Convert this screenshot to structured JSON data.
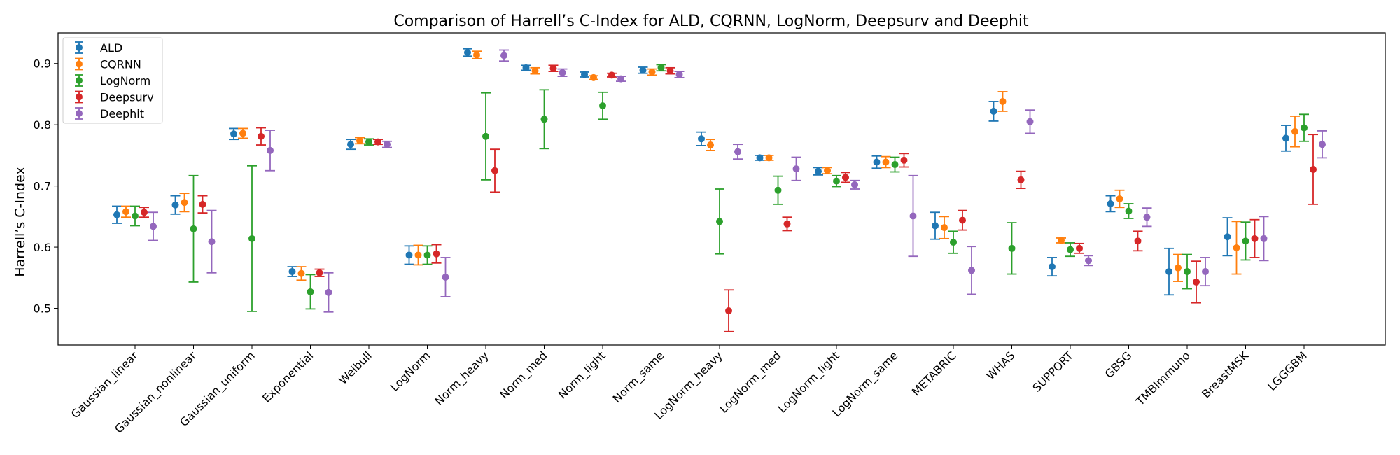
{
  "chart_data": {
    "type": "errorbar",
    "title": "Comparison of Harrell’s C-Index for ALD, CQRNN, LogNorm, Deepsurv and Deephit",
    "xlabel": "",
    "ylabel": "Harrell’s C-Index",
    "ylim": [
      0.44,
      0.95
    ],
    "yticks": [
      "0.5",
      "0.6",
      "0.7",
      "0.8",
      "0.9"
    ],
    "grid": false,
    "legend_position": "upper-left",
    "categories": [
      "Gaussian_linear",
      "Gaussian_nonlinear",
      "Gaussian_uniform",
      "Exponential",
      "Weibull",
      "LogNorm",
      "Norm_heavy",
      "Norm_med",
      "Norm_light",
      "Norm_same",
      "LogNorm_heavy",
      "LogNorm_med",
      "LogNorm_light",
      "LogNorm_same",
      "METABRIC",
      "WHAS",
      "SUPPORT",
      "GBSG",
      "TMBImmuno",
      "BreastMSK",
      "LGGGBM"
    ],
    "series": [
      {
        "name": "ALD",
        "color": "#1f77b4",
        "values": [
          0.653,
          0.669,
          0.785,
          0.56,
          0.768,
          0.587,
          0.918,
          0.893,
          0.882,
          0.889,
          0.777,
          0.746,
          0.724,
          0.739,
          0.635,
          0.822,
          0.568,
          0.671,
          0.56,
          0.617,
          0.778
        ],
        "errors": [
          0.014,
          0.015,
          0.009,
          0.008,
          0.008,
          0.015,
          0.006,
          0.004,
          0.004,
          0.005,
          0.011,
          0.004,
          0.006,
          0.01,
          0.022,
          0.016,
          0.015,
          0.013,
          0.038,
          0.031,
          0.021
        ]
      },
      {
        "name": "CQRNN",
        "color": "#ff7f0e",
        "values": [
          0.658,
          0.673,
          0.786,
          0.557,
          0.774,
          0.587,
          0.914,
          0.888,
          0.877,
          0.886,
          0.767,
          0.746,
          0.725,
          0.739,
          0.632,
          0.838,
          0.611,
          0.679,
          0.566,
          0.599,
          0.789
        ],
        "errors": [
          0.009,
          0.015,
          0.008,
          0.011,
          0.005,
          0.016,
          0.006,
          0.005,
          0.003,
          0.005,
          0.009,
          0.004,
          0.005,
          0.009,
          0.018,
          0.016,
          0.004,
          0.014,
          0.022,
          0.043,
          0.025
        ]
      },
      {
        "name": "LogNorm",
        "color": "#2ca02c",
        "values": [
          0.651,
          0.63,
          0.614,
          0.527,
          0.772,
          0.587,
          0.781,
          0.809,
          0.831,
          0.893,
          0.642,
          0.693,
          0.708,
          0.735,
          0.608,
          0.598,
          0.596,
          0.659,
          0.56,
          0.61,
          0.795
        ],
        "errors": [
          0.016,
          0.087,
          0.119,
          0.028,
          0.005,
          0.015,
          0.071,
          0.048,
          0.022,
          0.005,
          0.053,
          0.023,
          0.009,
          0.012,
          0.018,
          0.042,
          0.011,
          0.012,
          0.028,
          0.031,
          0.022
        ]
      },
      {
        "name": "Deepsurv",
        "color": "#d62728",
        "values": [
          0.657,
          0.67,
          0.781,
          0.558,
          0.772,
          0.589,
          0.725,
          0.892,
          0.881,
          0.888,
          0.496,
          0.638,
          0.714,
          0.742,
          0.644,
          0.71,
          0.598,
          0.61,
          0.543,
          0.614,
          0.727
        ],
        "errors": [
          0.008,
          0.014,
          0.014,
          0.006,
          0.004,
          0.015,
          0.035,
          0.005,
          0.003,
          0.005,
          0.034,
          0.011,
          0.008,
          0.011,
          0.016,
          0.014,
          0.008,
          0.016,
          0.034,
          0.031,
          0.057
        ]
      },
      {
        "name": "Deephit",
        "color": "#9467bd",
        "values": [
          0.634,
          0.609,
          0.758,
          0.526,
          0.768,
          0.551,
          0.913,
          0.885,
          0.875,
          0.882,
          0.756,
          0.728,
          0.702,
          0.651,
          0.562,
          0.805,
          0.578,
          0.649,
          0.56,
          0.614,
          0.768
        ],
        "errors": [
          0.023,
          0.051,
          0.033,
          0.032,
          0.005,
          0.032,
          0.009,
          0.006,
          0.004,
          0.005,
          0.012,
          0.019,
          0.007,
          0.066,
          0.039,
          0.019,
          0.008,
          0.015,
          0.023,
          0.036,
          0.022
        ]
      }
    ]
  }
}
